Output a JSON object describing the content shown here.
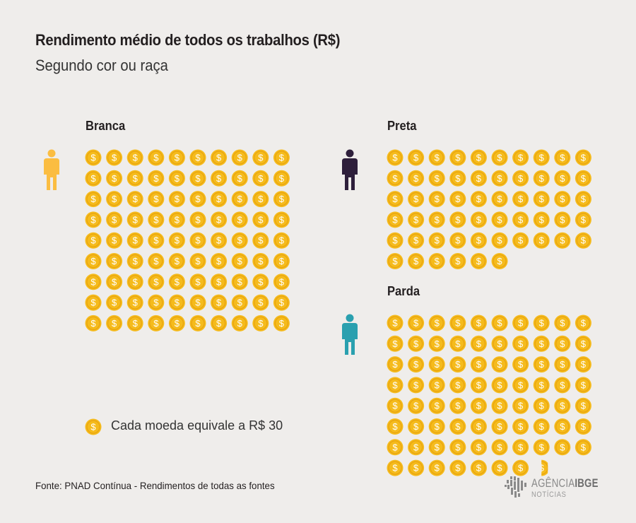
{
  "title": "Rendimento médio de todos os trabalhos (R$)",
  "subtitle": "Segundo cor ou raça",
  "legend": {
    "text": "Cada moeda equivale a R$ 30",
    "icon": "coin-icon"
  },
  "source": "Fonte: PNAD Contínua - Rendimentos de todas as fontes",
  "logo": {
    "brand": "AGÊNCIA",
    "brand_bold": "IBGE",
    "sub": "NOTÍCIAS"
  },
  "colors": {
    "background": "#efedeb",
    "coin": "#f5bb1c",
    "coin_dark": "#e8a30f",
    "branca": "#fbbd41",
    "preta": "#2e1f3b",
    "parda": "#2aa0af"
  },
  "chart_data": {
    "type": "pictogram",
    "unit_value": 30,
    "unit_label": "Cada moeda equivale a R$ 30",
    "categories": [
      "Branca",
      "Preta",
      "Parda"
    ],
    "coins": [
      90,
      56,
      77.5
    ],
    "values": [
      2700,
      1680,
      2325
    ]
  }
}
